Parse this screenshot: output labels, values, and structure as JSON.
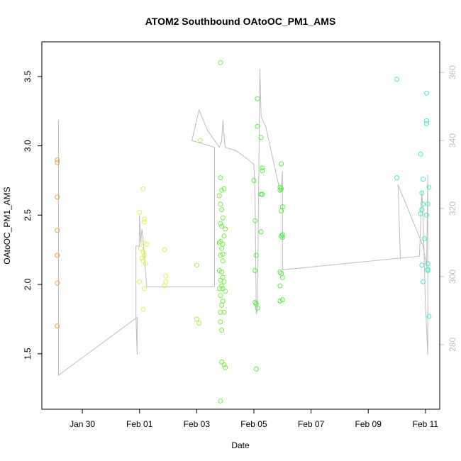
{
  "chart_data": {
    "type": "scatter",
    "title": "ATOM2 Southbound OAtoOC_PM1_AMS",
    "xlabel": "Date",
    "ylabel": "OAtoOC_PM1_AMS",
    "x_ticks": [
      "Jan 30",
      "Feb 01",
      "Feb 03",
      "Feb 05",
      "Feb 07",
      "Feb 09",
      "Feb 11"
    ],
    "x_tick_dates": [
      "2017-01-30",
      "2017-02-01",
      "2017-02-03",
      "2017-02-05",
      "2017-02-07",
      "2017-02-09",
      "2017-02-11"
    ],
    "xlim": [
      "2017-01-28T14:00",
      "2017-02-11T12:00"
    ],
    "ylim": [
      1.1,
      3.75
    ],
    "y_ticks": [
      1.5,
      2.0,
      2.5,
      3.0,
      3.5
    ],
    "y2_ticks": [
      280,
      300,
      320,
      340,
      360
    ],
    "y2lim": [
      261,
      369
    ],
    "grid": false,
    "legend": "none",
    "point_colors": {
      "orange": "#f0a040",
      "yellow": "#e8ee50",
      "yellowgreen": "#a8f040",
      "green": "#70f040",
      "lime": "#50ee40",
      "mint": "#40ee90",
      "cyan": "#40eec0"
    },
    "line_color": "#bdbdbd",
    "series": [
      {
        "color": "orange",
        "points": [
          [
            "2017-01-29T03:00",
            2.9
          ],
          [
            "2017-01-29T03:00",
            2.88
          ],
          [
            "2017-01-29T03:00",
            2.63
          ],
          [
            "2017-01-29T03:00",
            2.39
          ],
          [
            "2017-01-29T03:00",
            2.21
          ],
          [
            "2017-01-29T03:00",
            2.01
          ],
          [
            "2017-01-29T03:00",
            1.7
          ]
        ]
      },
      {
        "color": "yellow",
        "points": [
          [
            "2017-02-01T03:00",
            2.69
          ],
          [
            "2017-02-01T00:00",
            2.52
          ],
          [
            "2017-02-01T04:00",
            2.47
          ],
          [
            "2017-02-01T04:00",
            2.45
          ],
          [
            "2017-02-01T03:00",
            2.3
          ],
          [
            "2017-02-01T06:00",
            2.29
          ],
          [
            "2017-02-01T01:00",
            2.26
          ],
          [
            "2017-02-01T03:00",
            2.23
          ],
          [
            "2017-02-01T04:00",
            2.21
          ],
          [
            "2017-02-01T02:00",
            2.19
          ],
          [
            "2017-02-01T03:00",
            2.17
          ],
          [
            "2017-02-01T05:00",
            2.15
          ],
          [
            "2017-02-01T00:00",
            2.02
          ],
          [
            "2017-02-01T04:00",
            1.97
          ],
          [
            "2017-02-01T03:00",
            1.82
          ],
          [
            "2017-02-01T21:00",
            2.25
          ],
          [
            "2017-02-01T22:00",
            2.06
          ],
          [
            "2017-02-01T22:00",
            2.02
          ],
          [
            "2017-02-01T21:00",
            1.99
          ]
        ]
      },
      {
        "color": "yellowgreen",
        "points": [
          [
            "2017-02-03T03:00",
            3.04
          ],
          [
            "2017-02-03T00:00",
            2.14
          ],
          [
            "2017-02-03T00:00",
            1.75
          ],
          [
            "2017-02-03T02:00",
            1.72
          ]
        ]
      },
      {
        "color": "green",
        "points": [
          [
            "2017-02-03T20:00",
            3.6
          ],
          [
            "2017-02-03T20:00",
            2.77
          ],
          [
            "2017-02-03T23:00",
            2.69
          ],
          [
            "2017-02-03T21:00",
            2.68
          ],
          [
            "2017-02-03T19:00",
            2.64
          ],
          [
            "2017-02-03T20:00",
            2.58
          ],
          [
            "2017-02-03T21:00",
            2.54
          ],
          [
            "2017-02-03T22:00",
            2.48
          ],
          [
            "2017-02-03T20:00",
            2.44
          ],
          [
            "2017-02-03T21:00",
            2.42
          ],
          [
            "2017-02-04T00:00",
            2.4
          ],
          [
            "2017-02-03T23:00",
            2.35
          ],
          [
            "2017-02-03T20:00",
            2.31
          ],
          [
            "2017-02-03T22:00",
            2.29
          ],
          [
            "2017-02-03T19:00",
            2.3
          ],
          [
            "2017-02-03T21:00",
            2.26
          ],
          [
            "2017-02-03T22:00",
            2.22
          ],
          [
            "2017-02-03T20:00",
            2.21
          ],
          [
            "2017-02-03T22:00",
            2.17
          ],
          [
            "2017-02-03T19:00",
            2.1
          ],
          [
            "2017-02-03T21:00",
            2.09
          ],
          [
            "2017-02-03T22:00",
            2.05
          ],
          [
            "2017-02-03T20:00",
            2.03
          ],
          [
            "2017-02-03T23:00",
            2.02
          ],
          [
            "2017-02-03T21:00",
            1.99
          ],
          [
            "2017-02-03T22:00",
            1.97
          ],
          [
            "2017-02-03T19:00",
            1.97
          ],
          [
            "2017-02-04T00:00",
            1.95
          ],
          [
            "2017-02-03T20:00",
            1.92
          ],
          [
            "2017-02-03T22:00",
            1.88
          ],
          [
            "2017-02-03T21:00",
            1.85
          ],
          [
            "2017-02-03T20:00",
            1.8
          ],
          [
            "2017-02-03T23:00",
            1.8
          ],
          [
            "2017-02-03T20:00",
            1.73
          ],
          [
            "2017-02-03T21:00",
            1.67
          ],
          [
            "2017-02-03T21:00",
            1.44
          ],
          [
            "2017-02-03T23:00",
            1.42
          ],
          [
            "2017-02-04T00:00",
            1.4
          ],
          [
            "2017-02-03T20:00",
            1.16
          ]
        ]
      },
      {
        "color": "lime",
        "points": [
          [
            "2017-02-05T03:00",
            3.34
          ],
          [
            "2017-02-05T03:00",
            3.14
          ],
          [
            "2017-02-05T06:00",
            3.06
          ],
          [
            "2017-02-05T07:00",
            2.84
          ],
          [
            "2017-02-05T07:00",
            2.82
          ],
          [
            "2017-02-05T00:00",
            2.75
          ],
          [
            "2017-02-05T06:00",
            2.65
          ],
          [
            "2017-02-05T07:00",
            2.65
          ],
          [
            "2017-02-05T01:00",
            2.46
          ],
          [
            "2017-02-05T06:00",
            2.38
          ],
          [
            "2017-02-05T02:00",
            2.21
          ],
          [
            "2017-02-05T01:00",
            2.1
          ],
          [
            "2017-02-05T01:00",
            1.87
          ],
          [
            "2017-02-05T02:00",
            1.86
          ],
          [
            "2017-02-05T03:00",
            1.83
          ],
          [
            "2017-02-05T02:00",
            1.39
          ],
          [
            "2017-02-05T23:00",
            2.87
          ],
          [
            "2017-02-05T22:00",
            2.7
          ],
          [
            "2017-02-05T23:00",
            2.69
          ],
          [
            "2017-02-05T22:00",
            2.68
          ],
          [
            "2017-02-06T00:00",
            2.56
          ],
          [
            "2017-02-05T23:00",
            2.53
          ],
          [
            "2017-02-06T00:00",
            2.36
          ],
          [
            "2017-02-05T23:00",
            2.35
          ],
          [
            "2017-02-06T00:00",
            2.34
          ],
          [
            "2017-02-05T22:00",
            2.09
          ],
          [
            "2017-02-05T23:00",
            2.08
          ],
          [
            "2017-02-06T00:00",
            2.05
          ],
          [
            "2017-02-05T22:00",
            1.99
          ],
          [
            "2017-02-06T00:00",
            1.89
          ],
          [
            "2017-02-05T22:00",
            1.88
          ]
        ]
      },
      {
        "color": "mint",
        "points": [
          [
            "2017-02-10T00:00",
            3.48
          ],
          [
            "2017-02-10T00:00",
            2.77
          ]
        ]
      },
      {
        "color": "cyan",
        "points": [
          [
            "2017-02-11T01:00",
            3.38
          ],
          [
            "2017-02-11T01:00",
            3.18
          ],
          [
            "2017-02-11T01:00",
            3.16
          ],
          [
            "2017-02-10T20:00",
            2.94
          ],
          [
            "2017-02-10T22:00",
            2.76
          ],
          [
            "2017-02-11T03:00",
            2.7
          ],
          [
            "2017-02-10T21:00",
            2.66
          ],
          [
            "2017-02-10T22:00",
            2.58
          ],
          [
            "2017-02-11T02:00",
            2.58
          ],
          [
            "2017-02-10T21:00",
            2.54
          ],
          [
            "2017-02-10T20:00",
            2.51
          ],
          [
            "2017-02-11T01:00",
            2.5
          ],
          [
            "2017-02-10T23:00",
            2.33
          ],
          [
            "2017-02-10T21:00",
            2.14
          ],
          [
            "2017-02-11T02:00",
            2.15
          ],
          [
            "2017-02-11T02:00",
            2.11
          ],
          [
            "2017-02-11T02:00",
            2.1
          ],
          [
            "2017-02-10T22:00",
            2.02
          ],
          [
            "2017-02-11T03:00",
            1.77
          ]
        ]
      }
    ],
    "y2_series": [
      [
        "2017-01-29T04:00",
        346
      ],
      [
        "2017-01-29T04:00",
        334
      ],
      [
        "2017-01-29T04:00",
        271
      ],
      [
        "2017-01-31T22:00",
        288
      ],
      [
        "2017-01-31T22:00",
        277
      ],
      [
        "2017-01-31T21:00",
        288
      ],
      [
        "2017-01-31T21:00",
        309
      ],
      [
        "2017-02-01T00:00",
        309
      ],
      [
        "2017-02-01T00:00",
        318
      ],
      [
        "2017-02-01T01:00",
        310
      ],
      [
        "2017-02-01T02:00",
        314
      ],
      [
        "2017-02-01T04:00",
        307
      ],
      [
        "2017-02-01T06:00",
        297
      ],
      [
        "2017-02-01T10:00",
        297
      ],
      [
        "2017-02-03T15:00",
        297
      ],
      [
        "2017-02-03T15:00",
        338
      ],
      [
        "2017-02-02T20:00",
        340
      ],
      [
        "2017-02-03T02:00",
        349
      ],
      [
        "2017-02-03T09:00",
        343
      ],
      [
        "2017-02-03T19:00",
        338
      ],
      [
        "2017-02-03T21:00",
        340
      ],
      [
        "2017-02-03T22:00",
        346
      ],
      [
        "2017-02-03T23:00",
        341
      ],
      [
        "2017-02-04T00:00",
        338
      ],
      [
        "2017-02-04T09:00",
        337
      ],
      [
        "2017-02-04T17:00",
        335
      ],
      [
        "2017-02-05T00:00",
        333
      ],
      [
        "2017-02-05T01:00",
        323
      ],
      [
        "2017-02-05T02:00",
        289
      ],
      [
        "2017-02-05T03:00",
        290
      ],
      [
        "2017-02-05T05:00",
        361
      ],
      [
        "2017-02-05T06:00",
        348
      ],
      [
        "2017-02-05T06:00",
        347
      ],
      [
        "2017-02-05T10:00",
        344
      ],
      [
        "2017-02-05T22:00",
        325
      ],
      [
        "2017-02-05T23:00",
        325
      ],
      [
        "2017-02-06T00:00",
        331
      ],
      [
        "2017-02-06T00:00",
        302
      ],
      [
        "2017-02-10T19:00",
        306
      ],
      [
        "2017-02-10T21:00",
        325
      ],
      [
        "2017-02-10T22:00",
        318
      ],
      [
        "2017-02-11T00:00",
        292
      ],
      [
        "2017-02-11T02:00",
        277
      ],
      [
        "2017-02-11T02:00",
        330
      ],
      [
        "2017-02-11T01:00",
        303
      ],
      [
        "2017-02-10T22:00",
        309
      ],
      [
        "2017-02-10T01:00",
        327
      ],
      [
        "2017-02-10T03:00",
        305
      ]
    ]
  }
}
